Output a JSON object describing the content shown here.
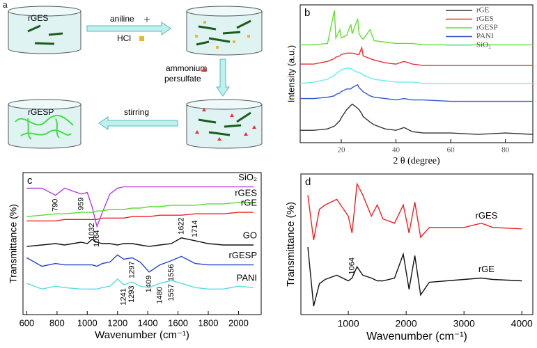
{
  "schematic": {
    "panel_label": "a",
    "beakers": [
      "rGES",
      "rGESP"
    ],
    "reagents": [
      "aniline",
      "HCl",
      "ammonium",
      "persulfate"
    ],
    "action": "stirring"
  },
  "chart_data": [
    {
      "type": "line",
      "panel_label": "b",
      "xlabel": "2 θ (degree)",
      "ylabel": "Intensity (a.u.)",
      "legend": "upper right",
      "x": [
        5,
        10,
        15,
        17.5,
        18,
        19.5,
        20,
        22,
        23.5,
        24,
        26,
        26.5,
        27.5,
        28,
        30.5,
        32,
        36,
        40,
        43,
        46,
        50,
        60,
        70,
        80,
        90
      ],
      "xlim": [
        5,
        90
      ],
      "xticks": [
        20,
        40,
        60,
        80
      ],
      "ylim": [
        0,
        100
      ],
      "series": [
        {
          "name": "rGE",
          "color": "#333333",
          "values": [
            9,
            9,
            10,
            12,
            13,
            16,
            18,
            24,
            27,
            28,
            25,
            24,
            21,
            19,
            15,
            13,
            10,
            9,
            11,
            8,
            7,
            7,
            6,
            7,
            6
          ]
        },
        {
          "name": "rGES",
          "color": "#e83030",
          "values": [
            57,
            57,
            59,
            61,
            62,
            63,
            64,
            65,
            65,
            65,
            64,
            64,
            69,
            63,
            61,
            60,
            58,
            57,
            59,
            57,
            56,
            56,
            56,
            56,
            56
          ]
        },
        {
          "name": "rGESP",
          "color": "#66dd33",
          "values": [
            71,
            71,
            72,
            96,
            76,
            82,
            76,
            78,
            86,
            79,
            90,
            79,
            76,
            75,
            82,
            74,
            73,
            72,
            72,
            72,
            71,
            71,
            71,
            71,
            71
          ]
        },
        {
          "name": "PANI",
          "color": "#3355cc",
          "values": [
            32,
            32,
            33,
            34,
            35,
            36,
            37,
            39,
            39,
            40,
            42,
            40,
            38,
            37,
            34,
            33,
            32,
            31,
            32,
            31,
            31,
            30,
            30,
            30,
            30
          ]
        },
        {
          "name": "SiO₂",
          "color": "#66eeee",
          "values": [
            43,
            44,
            46,
            49,
            50,
            52,
            53,
            54,
            54,
            53,
            51,
            51,
            50,
            49,
            47,
            46,
            45,
            44,
            44,
            44,
            43,
            43,
            43,
            43,
            43
          ]
        }
      ]
    },
    {
      "type": "line",
      "panel_label": "c",
      "xlabel": "Wavenumber (cm⁻¹)",
      "ylabel": "Transmittance (%)",
      "x": [
        600,
        700,
        790,
        850,
        959,
        1000,
        1032,
        1064,
        1100,
        1150,
        1200,
        1241,
        1297,
        1350,
        1409,
        1480,
        1556,
        1622,
        1714,
        1800,
        1900,
        2000,
        2100
      ],
      "xlim": [
        575,
        2150
      ],
      "xticks": [
        600,
        800,
        1000,
        1200,
        1400,
        1600,
        1800,
        2000
      ],
      "ylim": [
        0,
        100
      ],
      "series": [
        {
          "name": "SiO₂",
          "color": "#b040e0",
          "values": [
            89,
            89,
            84,
            89,
            85,
            86,
            76,
            62,
            72,
            85,
            89,
            90,
            90,
            90,
            90,
            90,
            90,
            90,
            90,
            90,
            90,
            90,
            90
          ],
          "peaks": [
            790,
            959,
            1064
          ]
        },
        {
          "name": "rGES",
          "color": "#55dd33",
          "values": [
            69,
            70,
            71,
            71,
            72,
            72,
            72,
            73,
            73,
            74,
            74,
            74,
            75,
            75,
            76,
            76,
            77,
            77,
            77,
            78,
            78,
            79,
            79
          ]
        },
        {
          "name": "rGE",
          "color": "#ee2222",
          "values": [
            66,
            66,
            66,
            67,
            67,
            67,
            67,
            67,
            68,
            68,
            68,
            68,
            69,
            69,
            69,
            70,
            70,
            70,
            71,
            71,
            71,
            72,
            72
          ],
          "peaks": [
            1032
          ]
        },
        {
          "name": "GO",
          "color": "#111111",
          "values": [
            48,
            49,
            50,
            49,
            51,
            50,
            53,
            51,
            50,
            50,
            49,
            50,
            50,
            49,
            48,
            49,
            50,
            54,
            52,
            50,
            49,
            49,
            49
          ],
          "peaks": [
            1622,
            1714
          ]
        },
        {
          "name": "rGESP",
          "color": "#2244cc",
          "values": [
            40,
            34,
            36,
            35,
            35,
            35,
            35,
            34,
            36,
            37,
            42,
            39,
            40,
            37,
            30,
            35,
            38,
            41,
            36,
            35,
            35,
            35,
            35
          ],
          "peaks": [
            1297,
            1409,
            1556
          ]
        },
        {
          "name": "PANI",
          "color": "#55dddd",
          "values": [
            22,
            18,
            20,
            19,
            18,
            18,
            18,
            18,
            19,
            20,
            25,
            21,
            23,
            20,
            19,
            22,
            24,
            22,
            19,
            18,
            18,
            20,
            19
          ],
          "peaks": [
            1241,
            1293,
            1480,
            1557
          ]
        }
      ]
    },
    {
      "type": "line",
      "panel_label": "d",
      "xlabel": "Wavenumber (cm⁻¹)",
      "ylabel": "Transmittance (%)",
      "x": [
        300,
        400,
        500,
        600,
        800,
        1000,
        1064,
        1150,
        1250,
        1400,
        1500,
        1600,
        1800,
        1950,
        2050,
        2150,
        2250,
        2400,
        3000,
        3300,
        3500,
        4000
      ],
      "xlim": [
        180,
        4190
      ],
      "xticks": [
        1000,
        2000,
        3000,
        4000
      ],
      "ylim": [
        0,
        100
      ],
      "series": [
        {
          "name": "rGES",
          "color": "#e82222",
          "values": [
            85,
            53,
            75,
            78,
            82,
            70,
            58,
            93,
            85,
            70,
            78,
            68,
            65,
            78,
            58,
            80,
            55,
            62,
            62,
            65,
            62,
            61
          ]
        },
        {
          "name": "rGE",
          "color": "#111111",
          "values": [
            48,
            6,
            22,
            25,
            28,
            24,
            26,
            34,
            28,
            26,
            24,
            24,
            26,
            43,
            18,
            42,
            14,
            23,
            25,
            26,
            25,
            24
          ],
          "peaks": [
            1064
          ]
        }
      ]
    }
  ]
}
